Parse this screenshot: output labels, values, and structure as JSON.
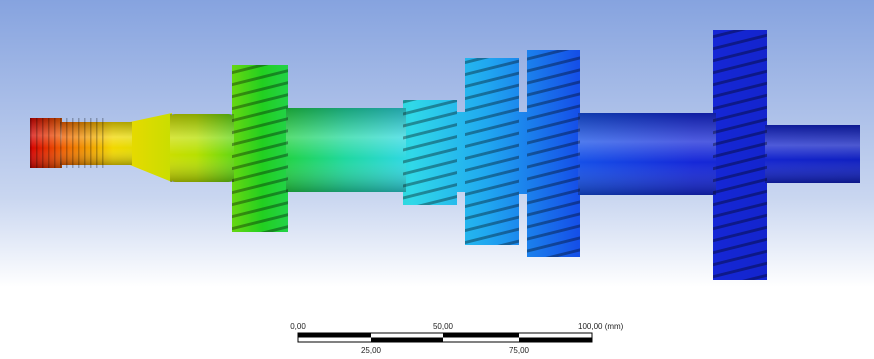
{
  "scale_bar": {
    "top_labels": [
      "0,00",
      "50,00",
      "100,00 (mm)"
    ],
    "bottom_labels": [
      "25,00",
      "75,00"
    ]
  }
}
